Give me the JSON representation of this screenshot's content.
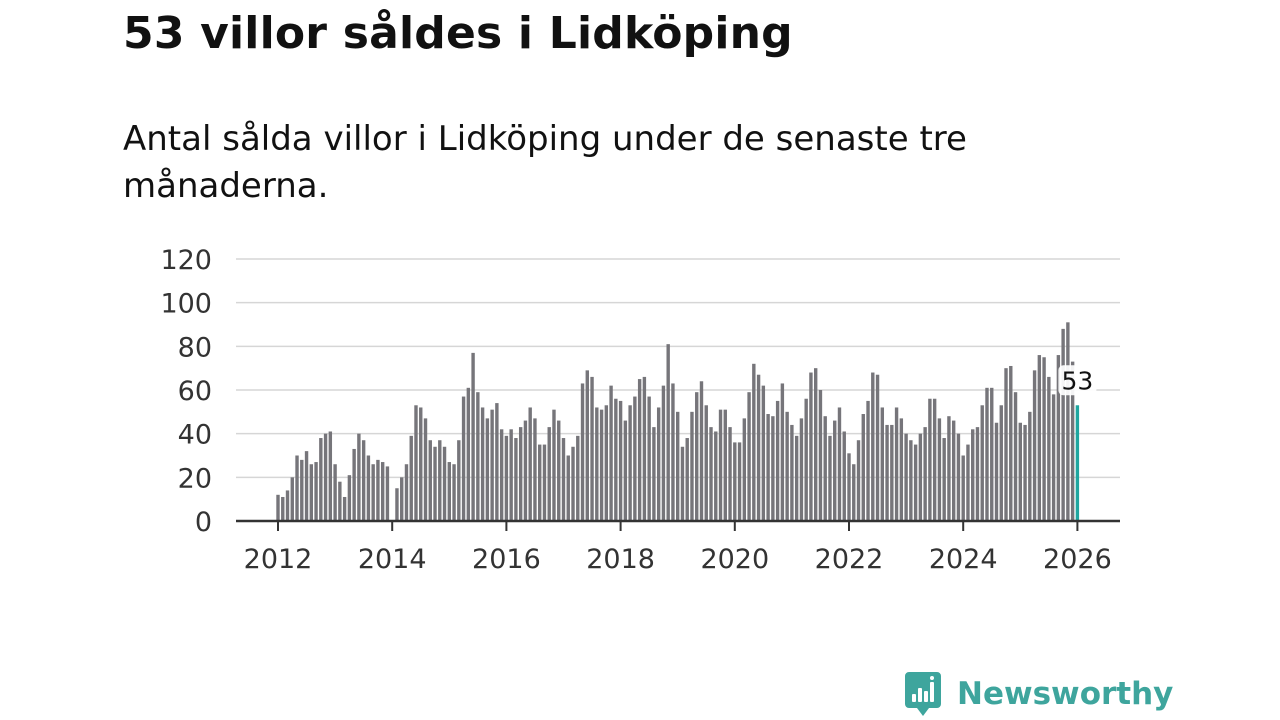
{
  "title": "53 villor såldes i Lidköping",
  "subtitle": "Antal sålda villor i Lidköping under de senaste tre månaderna.",
  "colors": {
    "bar": "#76757a",
    "highlight": "#1fa6a0",
    "grid": "#d6d6d6",
    "axis": "#333333",
    "brand": "#3ea59d"
  },
  "brand": {
    "name": "Newsworthy",
    "icon": "newsworthy-logo-icon"
  },
  "chart_data": {
    "type": "bar",
    "title": "53 villor såldes i Lidköping",
    "subtitle": "Antal sålda villor i Lidköping under de senaste tre månaderna.",
    "xlabel": "",
    "ylabel": "",
    "ylim": [
      0,
      120
    ],
    "yticks": [
      0,
      20,
      40,
      60,
      80,
      100,
      120
    ],
    "xlim": [
      2011.917,
      2026.083
    ],
    "xticks": [
      "2012",
      "2014",
      "2016",
      "2018",
      "2020",
      "2022",
      "2024",
      "2026"
    ],
    "x_start": "2012-01",
    "x_end": "2026-01",
    "frequency": "monthly",
    "grid": true,
    "highlight_label": "53",
    "values": [
      12,
      11,
      14,
      20,
      30,
      28,
      32,
      26,
      27,
      38,
      40,
      41,
      26,
      18,
      11,
      21,
      33,
      40,
      37,
      30,
      26,
      28,
      27,
      25,
      0,
      15,
      20,
      26,
      39,
      53,
      52,
      47,
      37,
      34,
      37,
      34,
      27,
      26,
      37,
      57,
      61,
      77,
      59,
      52,
      47,
      51,
      54,
      42,
      39,
      42,
      38,
      43,
      46,
      52,
      47,
      35,
      35,
      43,
      51,
      46,
      38,
      30,
      34,
      39,
      63,
      69,
      66,
      52,
      51,
      53,
      62,
      56,
      55,
      46,
      53,
      57,
      65,
      66,
      57,
      43,
      52,
      62,
      81,
      63,
      50,
      34,
      38,
      50,
      59,
      64,
      53,
      43,
      41,
      51,
      51,
      43,
      36,
      36,
      47,
      59,
      72,
      67,
      62,
      49,
      48,
      55,
      63,
      50,
      44,
      39,
      47,
      56,
      68,
      70,
      60,
      48,
      39,
      46,
      52,
      41,
      31,
      26,
      37,
      49,
      55,
      68,
      67,
      52,
      44,
      44,
      52,
      47,
      40,
      37,
      35,
      40,
      43,
      56,
      56,
      47,
      38,
      48,
      46,
      40,
      30,
      35,
      42,
      43,
      53,
      61,
      61,
      45,
      53,
      70,
      71,
      59,
      45,
      44,
      50,
      69,
      76,
      75,
      66,
      58,
      76,
      88,
      91,
      73,
      53
    ]
  }
}
